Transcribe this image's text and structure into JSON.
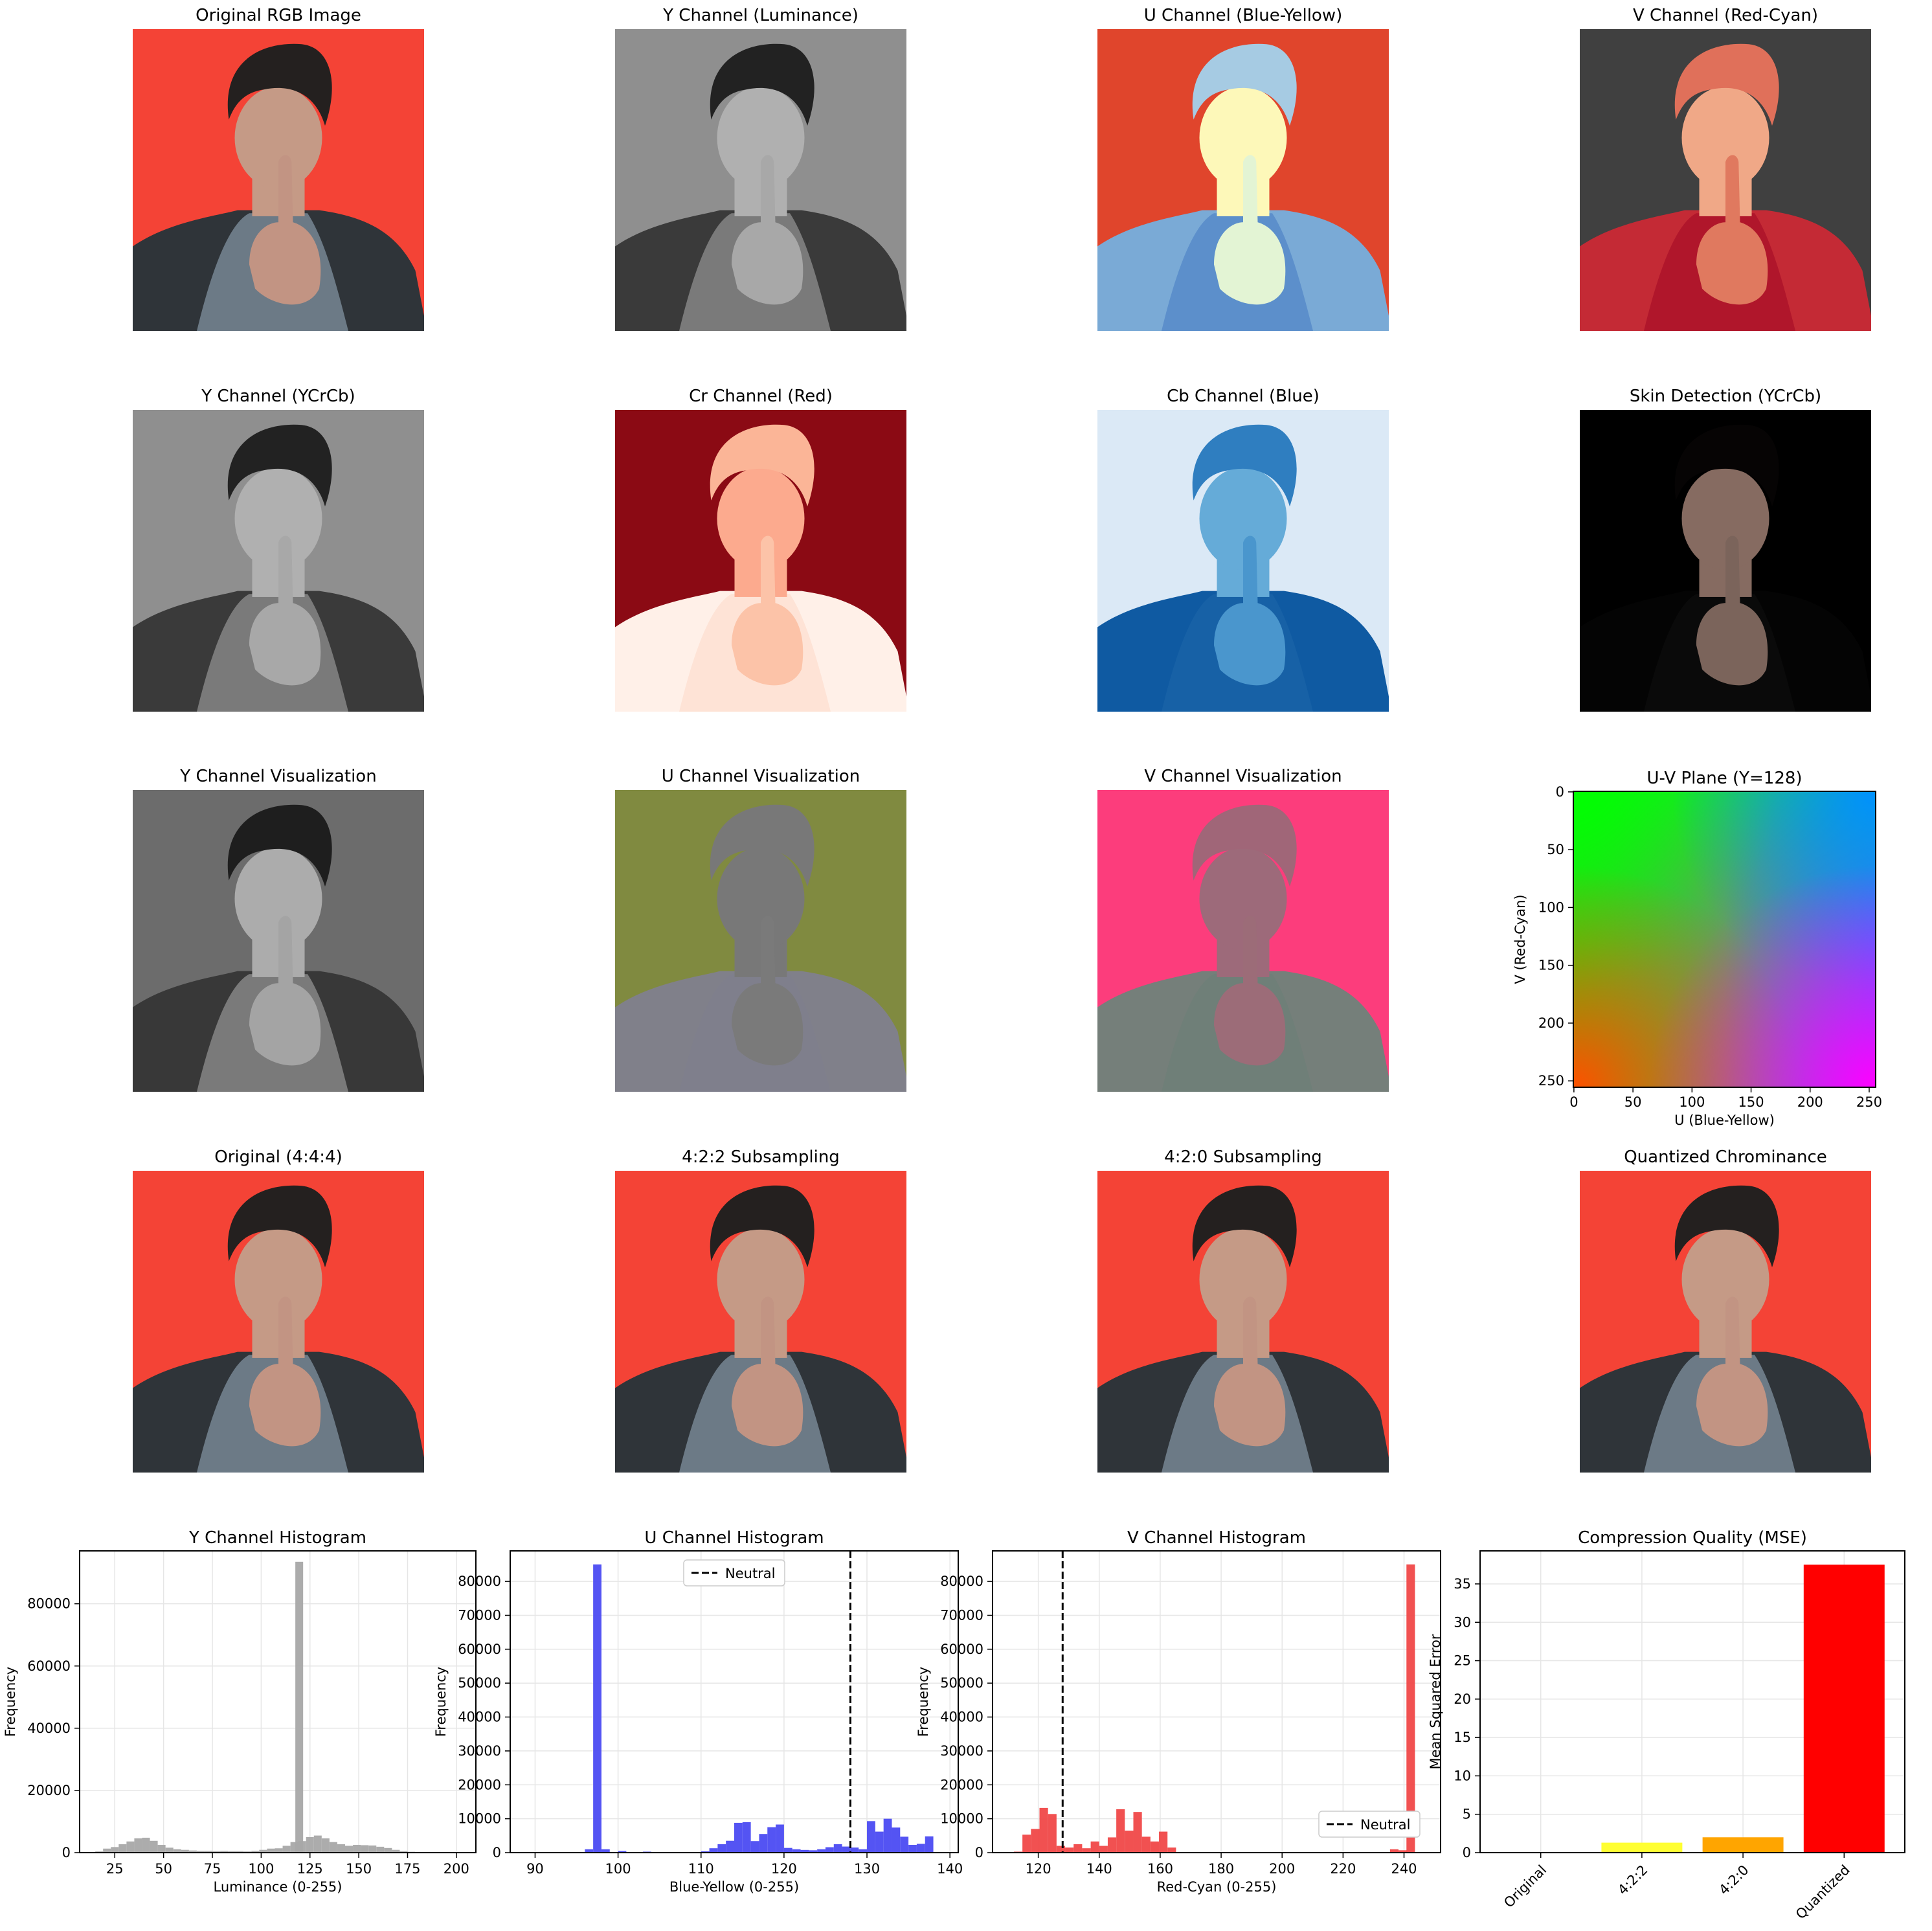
{
  "panels": [
    {
      "id": "p1",
      "title": "Original RGB Image",
      "variant": "rgb"
    },
    {
      "id": "p2",
      "title": "Y Channel (Luminance)",
      "variant": "gray"
    },
    {
      "id": "p3",
      "title": "U Channel (Blue-Yellow)",
      "variant": "u_cmap"
    },
    {
      "id": "p4",
      "title": "V Channel (Red-Cyan)",
      "variant": "v_cmap"
    },
    {
      "id": "p5",
      "title": "Y Channel (YCrCb)",
      "variant": "gray"
    },
    {
      "id": "p6",
      "title": "Cr Channel (Red)",
      "variant": "cr"
    },
    {
      "id": "p7",
      "title": "Cb Channel (Blue)",
      "variant": "cb"
    },
    {
      "id": "p8",
      "title": "Skin Detection (YCrCb)",
      "variant": "skin"
    },
    {
      "id": "p9",
      "title": "Y Channel Visualization",
      "variant": "gray_dark"
    },
    {
      "id": "p10",
      "title": "U Channel Visualization",
      "variant": "u_vis"
    },
    {
      "id": "p11",
      "title": "V Channel Visualization",
      "variant": "v_vis"
    },
    {
      "id": "p13",
      "title": "Original (4:4:4)",
      "variant": "rgb"
    },
    {
      "id": "p14",
      "title": "4:2:2 Subsampling",
      "variant": "rgb"
    },
    {
      "id": "p15",
      "title": "4:2:0 Subsampling",
      "variant": "rgb"
    },
    {
      "id": "p16",
      "title": "Quantized Chrominance",
      "variant": "rgb"
    }
  ],
  "uv_plane": {
    "title": "U-V Plane (Y=128)",
    "xlabel": "U (Blue-Yellow)",
    "ylabel": "V (Red-Cyan)",
    "xticks": [
      "0",
      "50",
      "100",
      "150",
      "200",
      "250"
    ],
    "yticks": [
      "0",
      "50",
      "100",
      "150",
      "200",
      "250"
    ]
  },
  "colors": {
    "rgb_bg": "#f44336",
    "gray_bg": "#8f8f8f",
    "y_hist": "#a8a8a8",
    "u_hist": "#4b4bf2",
    "v_hist": "#f04848",
    "mse_bars": [
      "#ffffff",
      "#ffff33",
      "#ffa500",
      "#ff0000"
    ]
  },
  "chart_data": [
    {
      "type": "bar",
      "title": "Y Channel Histogram",
      "xlabel": "Luminance (0-255)",
      "ylabel": "Frequency",
      "xlim": [
        7,
        210
      ],
      "ylim": [
        0,
        97000
      ],
      "xticks": [
        25,
        50,
        75,
        100,
        125,
        150,
        175,
        200
      ],
      "yticks": [
        0,
        20000,
        40000,
        60000,
        80000
      ],
      "bin_width": 4,
      "bins": [
        [
          15,
          400
        ],
        [
          19,
          1300
        ],
        [
          23,
          1800
        ],
        [
          27,
          2700
        ],
        [
          31,
          3600
        ],
        [
          35,
          4600
        ],
        [
          39,
          4800
        ],
        [
          43,
          3800
        ],
        [
          47,
          2500
        ],
        [
          51,
          1600
        ],
        [
          55,
          1100
        ],
        [
          59,
          900
        ],
        [
          63,
          700
        ],
        [
          67,
          600
        ],
        [
          71,
          600
        ],
        [
          75,
          500
        ],
        [
          79,
          600
        ],
        [
          83,
          500
        ],
        [
          87,
          500
        ],
        [
          91,
          400
        ],
        [
          95,
          600
        ],
        [
          99,
          900
        ],
        [
          103,
          1300
        ],
        [
          107,
          1400
        ],
        [
          111,
          2200
        ],
        [
          115,
          3400
        ],
        [
          117.5,
          93500
        ],
        [
          119,
          3700
        ],
        [
          123,
          5000
        ],
        [
          127,
          5500
        ],
        [
          131,
          4600
        ],
        [
          135,
          3400
        ],
        [
          139,
          2700
        ],
        [
          143,
          2200
        ],
        [
          147,
          2500
        ],
        [
          151,
          2400
        ],
        [
          155,
          2300
        ],
        [
          159,
          1900
        ],
        [
          163,
          1500
        ],
        [
          167,
          900
        ],
        [
          171,
          500
        ],
        [
          175,
          300
        ],
        [
          179,
          200
        ],
        [
          183,
          100
        ]
      ],
      "grid": true
    },
    {
      "type": "bar",
      "title": "U Channel Histogram",
      "xlabel": "Blue-Yellow (0-255)",
      "ylabel": "Frequency",
      "xlim": [
        87,
        141
      ],
      "ylim": [
        0,
        89000
      ],
      "xticks": [
        90,
        100,
        110,
        120,
        130,
        140
      ],
      "yticks": [
        0,
        10000,
        20000,
        30000,
        40000,
        50000,
        60000,
        70000,
        80000
      ],
      "bin_width": 1,
      "bins": [
        [
          94,
          100
        ],
        [
          95,
          200
        ],
        [
          96,
          1000
        ],
        [
          97,
          85000
        ],
        [
          98,
          1000
        ],
        [
          99,
          200
        ],
        [
          100,
          500
        ],
        [
          101,
          200
        ],
        [
          102,
          100
        ],
        [
          103,
          300
        ],
        [
          104,
          100
        ],
        [
          105,
          100
        ],
        [
          106,
          200
        ],
        [
          107,
          100
        ],
        [
          108,
          100
        ],
        [
          109,
          200
        ],
        [
          110,
          400
        ],
        [
          111,
          1300
        ],
        [
          112,
          2500
        ],
        [
          113,
          3500
        ],
        [
          114,
          8800
        ],
        [
          115,
          9000
        ],
        [
          116,
          3400
        ],
        [
          117,
          5500
        ],
        [
          118,
          7500
        ],
        [
          119,
          8300
        ],
        [
          120,
          1400
        ],
        [
          121,
          1000
        ],
        [
          122,
          800
        ],
        [
          123,
          700
        ],
        [
          124,
          1000
        ],
        [
          125,
          1600
        ],
        [
          126,
          2500
        ],
        [
          127,
          1800
        ],
        [
          128,
          1500
        ],
        [
          129,
          1000
        ],
        [
          130,
          9300
        ],
        [
          131,
          6200
        ],
        [
          132,
          10000
        ],
        [
          133,
          7400
        ],
        [
          134,
          4700
        ],
        [
          135,
          2300
        ],
        [
          136,
          2600
        ],
        [
          137,
          4800
        ]
      ],
      "vline": {
        "x": 128,
        "label": "Neutral"
      },
      "legend": "upper center",
      "grid": true
    },
    {
      "type": "bar",
      "title": "V Channel Histogram",
      "xlabel": "Red-Cyan (0-255)",
      "ylabel": "Frequency",
      "xlim": [
        105,
        252
      ],
      "ylim": [
        0,
        89000
      ],
      "xticks": [
        120,
        140,
        160,
        180,
        200,
        220,
        240
      ],
      "yticks": [
        0,
        10000,
        20000,
        30000,
        40000,
        50000,
        60000,
        70000,
        80000
      ],
      "bin_width": 2.8,
      "bins": [
        [
          112,
          300
        ],
        [
          114.8,
          5300
        ],
        [
          117.6,
          7000
        ],
        [
          120.4,
          13200
        ],
        [
          123.2,
          11400
        ],
        [
          126,
          2000
        ],
        [
          128.8,
          1500
        ],
        [
          131.6,
          2500
        ],
        [
          134.4,
          1300
        ],
        [
          137.2,
          3300
        ],
        [
          140,
          2000
        ],
        [
          142.8,
          4500
        ],
        [
          145.6,
          12800
        ],
        [
          148.4,
          6500
        ],
        [
          151.2,
          12000
        ],
        [
          154,
          4700
        ],
        [
          156.8,
          3300
        ],
        [
          159.6,
          6200
        ],
        [
          162.4,
          1500
        ],
        [
          232.6,
          200
        ],
        [
          235.4,
          1000
        ],
        [
          238.2,
          700
        ],
        [
          240.8,
          85000
        ]
      ],
      "vline": {
        "x": 128,
        "label": "Neutral"
      },
      "legend": "lower right",
      "grid": true
    },
    {
      "type": "bar",
      "title": "Compression Quality (MSE)",
      "ylabel": "Mean Squared Error",
      "categories": [
        "Original",
        "4:2:2",
        "4:2:0",
        "Quantized"
      ],
      "values": [
        0,
        1.3,
        2.0,
        37.5
      ],
      "ylim": [
        0,
        39.3
      ],
      "yticks": [
        0,
        5,
        10,
        15,
        20,
        25,
        30,
        35
      ],
      "grid": true
    }
  ]
}
